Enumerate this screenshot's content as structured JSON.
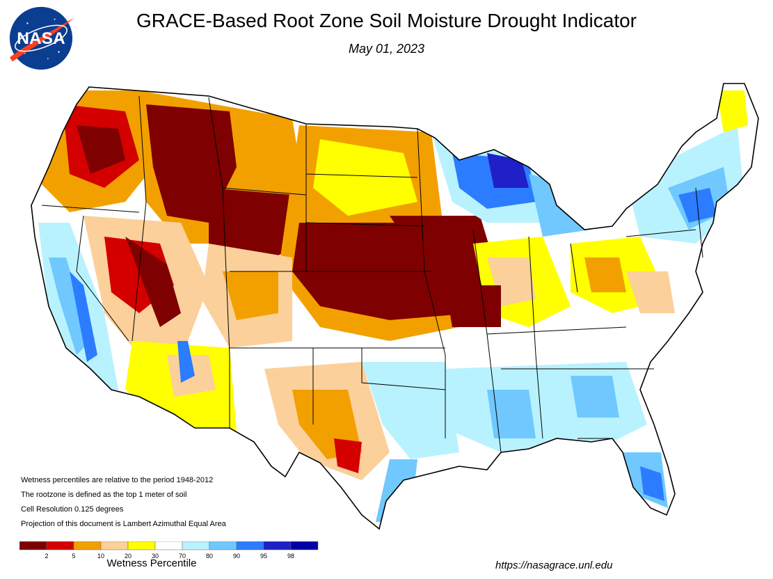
{
  "header": {
    "title": "GRACE-Based Root Zone Soil  Moisture Drought Indicator",
    "date": "May 01, 2023",
    "logo_text": "NASA"
  },
  "notes": [
    "Wetness percentiles are relative to the period 1948-2012",
    "The rootzone is defined as the top 1 meter of soil",
    "Cell Resolution 0.125 degrees",
    "Projection of this document is Lambert Azimuthal Equal Area"
  ],
  "legend": {
    "title": "Wetness Percentile",
    "tick_labels": [
      "2",
      "5",
      "10",
      "20",
      "30",
      "70",
      "80",
      "90",
      "95",
      "98"
    ],
    "colors": [
      "#7f0000",
      "#d40000",
      "#f2a000",
      "#fbd09a",
      "#ffff00",
      "#ffffff",
      "#b9f2ff",
      "#70c8ff",
      "#2c7cff",
      "#1f20c8",
      "#0000a8"
    ]
  },
  "footer": {
    "url": "https://nasagrace.unl.edu"
  },
  "palette": {
    "deep_drought": "#7f0000",
    "severe": "#d40000",
    "moderate": "#f2a000",
    "abnormal": "#fbd09a",
    "dry": "#ffff00",
    "normal": "#ffffff",
    "wet_light": "#b9f2ff",
    "wet": "#70c8ff",
    "wet_strong": "#2c7cff",
    "very_wet": "#1f20c8",
    "extreme_wet": "#0000a8"
  }
}
